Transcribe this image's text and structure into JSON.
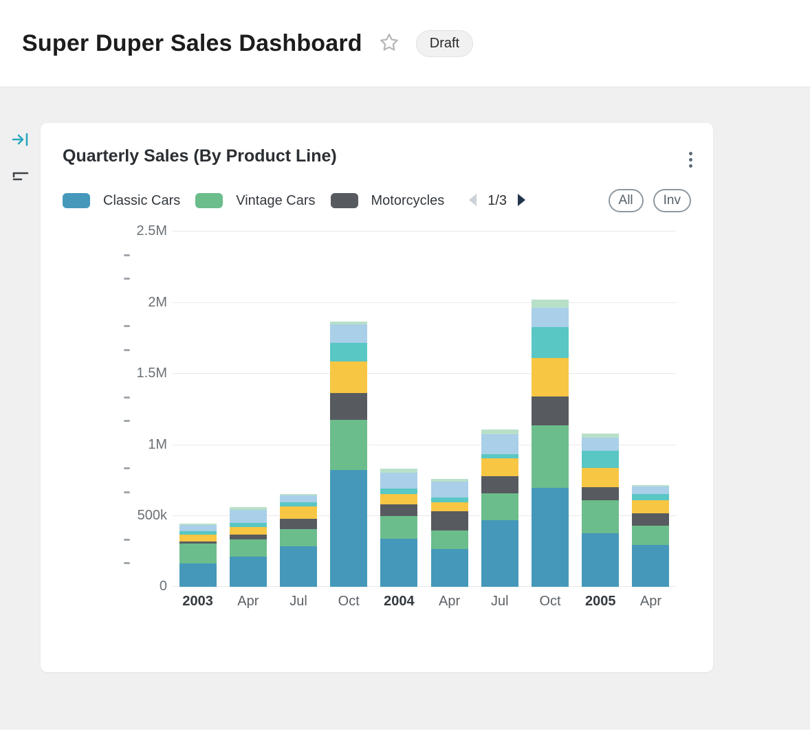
{
  "page": {
    "title": "Super Duper Sales Dashboard",
    "status_badge": "Draft"
  },
  "icons": {
    "header_star": "star-icon",
    "sidebar_collapse": "collapse-panel-icon",
    "sidebar_filter": "filter-icon",
    "card_menu": "kebab-menu-icon",
    "legend_prev": "chevron-left-icon",
    "legend_next": "chevron-right-icon"
  },
  "colors": {
    "accent_teal": "#2ba6be",
    "classic_cars": "#4598ba",
    "vintage_cars": "#6cbd8c",
    "motorcycles": "#575b60",
    "yellow": "#f7c643",
    "teal": "#59c7c3",
    "light_blue": "#a9cfe9",
    "pale_green": "#b8e0c9",
    "page_background": "#f0f0f1",
    "gridline": "#e8e9ea"
  },
  "card": {
    "title": "Quarterly Sales (By Product Line)",
    "buttons": {
      "all": "All",
      "inv": "Inv"
    }
  },
  "chart_data": {
    "type": "bar",
    "stacked": true,
    "title": "Quarterly Sales (By Product Line)",
    "categories": [
      "2003",
      "Apr",
      "Jul",
      "Oct",
      "2004",
      "Apr",
      "Jul",
      "Oct",
      "2005",
      "Apr"
    ],
    "categories_bold": [
      true,
      false,
      false,
      false,
      true,
      false,
      false,
      false,
      true,
      false
    ],
    "ylim": [
      0,
      2500000
    ],
    "y_axis": {
      "max": 2500000,
      "minor_ticks_per_interval": 2,
      "ticks": [
        {
          "label": "2.5M",
          "value": 2500000
        },
        {
          "label": "2M",
          "value": 2000000
        },
        {
          "label": "1.5M",
          "value": 1500000
        },
        {
          "label": "1M",
          "value": 1000000
        },
        {
          "label": "500k",
          "value": 500000
        },
        {
          "label": "0",
          "value": 0
        }
      ]
    },
    "legend": {
      "page_label": "1/3",
      "visible_items": [
        {
          "label": "Classic Cars",
          "color": "#4598ba"
        },
        {
          "label": "Vintage Cars",
          "color": "#6cbd8c"
        },
        {
          "label": "Motorcycles",
          "color": "#575b60"
        }
      ]
    },
    "series": [
      {
        "name": "Classic Cars",
        "color": "#4598ba",
        "values": [
          165000,
          210000,
          285000,
          820000,
          340000,
          265000,
          470000,
          695000,
          375000,
          295000
        ]
      },
      {
        "name": "Vintage Cars",
        "color": "#6cbd8c",
        "values": [
          140000,
          120000,
          120000,
          350000,
          160000,
          130000,
          190000,
          440000,
          230000,
          135000
        ]
      },
      {
        "name": "Motorcycles",
        "color": "#575b60",
        "values": [
          15000,
          35000,
          70000,
          190000,
          80000,
          135000,
          120000,
          205000,
          90000,
          85000
        ]
      },
      {
        "name": "unlabeled-yellow",
        "color": "#f7c643",
        "values": [
          50000,
          55000,
          85000,
          220000,
          70000,
          65000,
          125000,
          270000,
          135000,
          90000
        ]
      },
      {
        "name": "unlabeled-teal",
        "color": "#59c7c3",
        "values": [
          25000,
          30000,
          30000,
          130000,
          40000,
          35000,
          30000,
          215000,
          120000,
          45000
        ]
      },
      {
        "name": "unlabeled-light-blue",
        "color": "#a9cfe9",
        "values": [
          45000,
          90000,
          50000,
          130000,
          110000,
          110000,
          140000,
          135000,
          90000,
          55000
        ]
      },
      {
        "name": "unlabeled-pale-green",
        "color": "#b8e0c9",
        "values": [
          10000,
          20000,
          10000,
          20000,
          30000,
          20000,
          35000,
          60000,
          30000,
          10000
        ]
      }
    ]
  }
}
